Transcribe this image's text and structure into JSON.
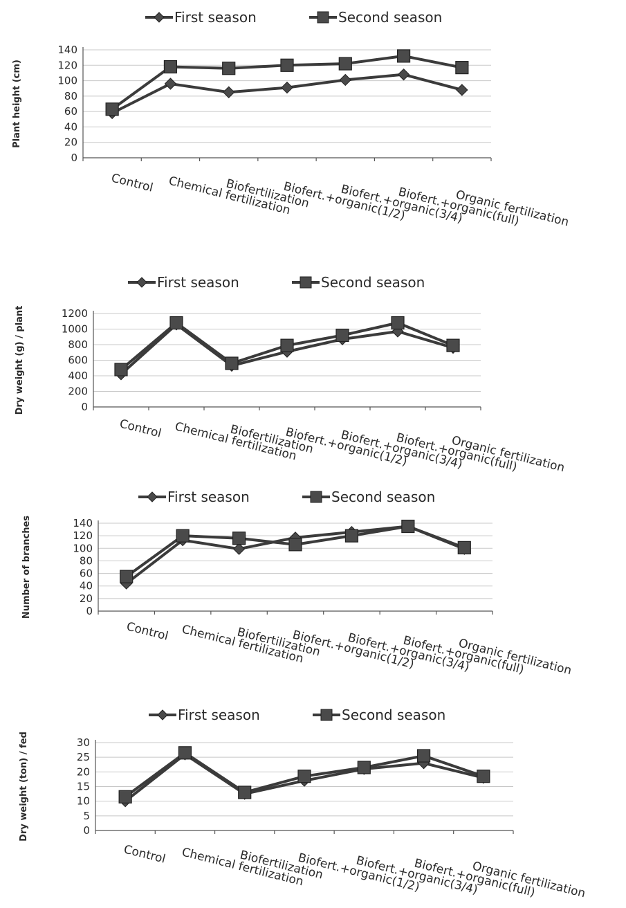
{
  "chart_data": [
    {
      "type": "line",
      "ylabel": "Plant height (cm)",
      "categories": [
        "Control",
        "Chemical fertilization",
        "Biofertilization",
        "Biofert.+organic(1/2)",
        "Biofert.+organic(3/4)",
        "Biofert.+organic(full)",
        "Organic fertilization"
      ],
      "yticks": [
        "0",
        "20",
        "40",
        "60",
        "80",
        "100",
        "120",
        "140"
      ],
      "ylim": [
        0,
        140
      ],
      "grid": true,
      "legend": "top",
      "series": [
        {
          "name": "First season",
          "marker": "diamond",
          "values": [
            58,
            96,
            85,
            91,
            101,
            108,
            88
          ]
        },
        {
          "name": "Second season",
          "marker": "square",
          "values": [
            63,
            118,
            116,
            120,
            122,
            132,
            117
          ]
        }
      ]
    },
    {
      "type": "line",
      "ylabel": "Dry weight (g) / plant",
      "categories": [
        "Control",
        "Chemical fertilization",
        "Biofertilization",
        "Biofert.+organic(1/2)",
        "Biofert.+organic(3/4)",
        "Biofert.+organic(full)",
        "Organic fertilization"
      ],
      "yticks": [
        "0",
        "200",
        "400",
        "600",
        "800",
        "1000",
        "1200"
      ],
      "ylim": [
        0,
        1200
      ],
      "grid": true,
      "legend": "top",
      "series": [
        {
          "name": "First season",
          "marker": "diamond",
          "values": [
            420,
            1060,
            530,
            710,
            870,
            970,
            760
          ]
        },
        {
          "name": "Second season",
          "marker": "square",
          "values": [
            480,
            1080,
            560,
            790,
            920,
            1080,
            790
          ]
        }
      ]
    },
    {
      "type": "line",
      "ylabel": "Number of branches",
      "categories": [
        "Control",
        "Chemical fertilization",
        "Biofertilization",
        "Biofert.+organic(1/2)",
        "Biofert.+organic(3/4)",
        "Biofert.+organic(full)",
        "Organic fertilization"
      ],
      "yticks": [
        "0",
        "20",
        "40",
        "60",
        "80",
        "100",
        "120",
        "140"
      ],
      "ylim": [
        0,
        140
      ],
      "grid": true,
      "legend": "top",
      "series": [
        {
          "name": "First season",
          "marker": "diamond",
          "values": [
            44,
            113,
            99,
            117,
            126,
            135,
            99
          ]
        },
        {
          "name": "Second season",
          "marker": "square",
          "values": [
            55,
            120,
            116,
            106,
            120,
            135,
            101
          ]
        }
      ]
    },
    {
      "type": "line",
      "ylabel": "Dry weight (ton) / fed",
      "categories": [
        "Control",
        "Chemical fertilization",
        "Biofertilization",
        "Biofert.+organic(1/2)",
        "Biofert.+organic(3/4)",
        "Biofert.+organic(full)",
        "Organic fertilization"
      ],
      "yticks": [
        "0",
        "5",
        "10",
        "15",
        "20",
        "25",
        "30"
      ],
      "ylim": [
        0,
        30
      ],
      "grid": true,
      "legend": "top",
      "series": [
        {
          "name": "First season",
          "marker": "diamond",
          "values": [
            10,
            26,
            12.5,
            17,
            21,
            23,
            18
          ]
        },
        {
          "name": "Second season",
          "marker": "square",
          "values": [
            11.5,
            26.5,
            13,
            18.5,
            21.5,
            25.5,
            18.5
          ]
        }
      ]
    }
  ]
}
